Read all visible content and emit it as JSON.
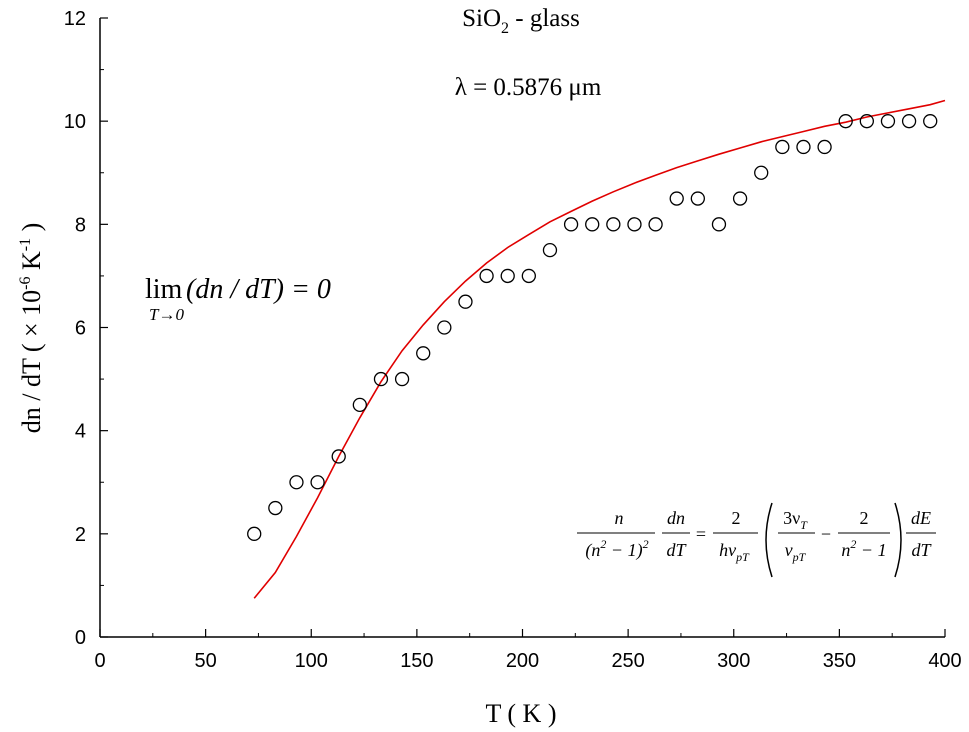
{
  "chart_data": {
    "type": "scatter",
    "title": "SiO₂ - glass",
    "title_parts": {
      "base": "SiO",
      "sub": "2",
      "rest": " - glass"
    },
    "subtitle": "λ = 0.5876 μm",
    "xlabel": "T ( K )",
    "ylabel_parts": {
      "base": "dn / dT  ( × 10",
      "sup1": "-6",
      "mid": " K",
      "sup2": "-1",
      "end": " )"
    },
    "xlim": [
      0,
      400
    ],
    "ylim": [
      0,
      12
    ],
    "x_ticks": [
      0,
      50,
      100,
      150,
      200,
      250,
      300,
      350,
      400
    ],
    "x_tick_labels": [
      "0",
      "50",
      "100",
      "150",
      "200",
      "250",
      "300",
      "350",
      "400"
    ],
    "y_ticks": [
      0,
      2,
      4,
      6,
      8,
      10,
      12
    ],
    "y_tick_labels": [
      "0",
      "2",
      "4",
      "6",
      "8",
      "10",
      "12"
    ],
    "grid": false,
    "series": [
      {
        "marker": "open-circle",
        "color": "#000000",
        "x": [
          73,
          83,
          93,
          103,
          113,
          123,
          133,
          143,
          153,
          163,
          173,
          183,
          193,
          203,
          213,
          223,
          233,
          243,
          253,
          263,
          273,
          283,
          293,
          303,
          313,
          323,
          333,
          343,
          353,
          363,
          373,
          383,
          393
        ],
        "y": [
          2.0,
          2.5,
          3.0,
          3.0,
          3.5,
          4.5,
          5.0,
          5.0,
          5.5,
          6.0,
          6.5,
          7.0,
          7.0,
          7.0,
          7.5,
          8.0,
          8.0,
          8.0,
          8.0,
          8.0,
          8.5,
          8.5,
          8.0,
          8.5,
          9.0,
          9.5,
          9.5,
          9.5,
          10.0,
          10.0,
          10.0,
          10.0,
          10.0
        ]
      },
      {
        "marker": "line",
        "color": "#e00000",
        "x": [
          73,
          83,
          93,
          103,
          113,
          123,
          133,
          143,
          153,
          163,
          173,
          183,
          193,
          203,
          213,
          223,
          233,
          243,
          253,
          263,
          273,
          283,
          293,
          303,
          313,
          323,
          333,
          343,
          353,
          363,
          373,
          383,
          393,
          400
        ],
        "y": [
          0.75,
          1.25,
          1.95,
          2.7,
          3.5,
          4.25,
          4.95,
          5.55,
          6.05,
          6.5,
          6.9,
          7.25,
          7.55,
          7.8,
          8.05,
          8.25,
          8.45,
          8.63,
          8.8,
          8.95,
          9.1,
          9.23,
          9.36,
          9.48,
          9.6,
          9.7,
          9.8,
          9.9,
          9.98,
          10.08,
          10.16,
          10.24,
          10.32,
          10.4
        ]
      }
    ],
    "annotations": {
      "limit": {
        "lim": "lim",
        "sub": "T→0",
        "expr": "(dn / dT) = 0"
      },
      "equation": {
        "f1_num": "n",
        "f1_den_a": "(n",
        "f1_den_sup1": "2",
        "f1_den_b": " − 1)",
        "f1_den_sup2": "2",
        "f2_num": "dn",
        "f2_den": "dT",
        "eq": "=",
        "f3_num": "2",
        "f3_den": "hν",
        "f3_den_sub": "pT",
        "f4_num": "3ν",
        "f4_num_sub": "T",
        "f4_den": "ν",
        "f4_den_sub": "pT",
        "minus": "−",
        "f5_num": "2",
        "f5_den_a": "n",
        "f5_den_sup": "2",
        "f5_den_b": " − 1",
        "f6_num": "dE",
        "f6_den": "dT"
      }
    }
  }
}
